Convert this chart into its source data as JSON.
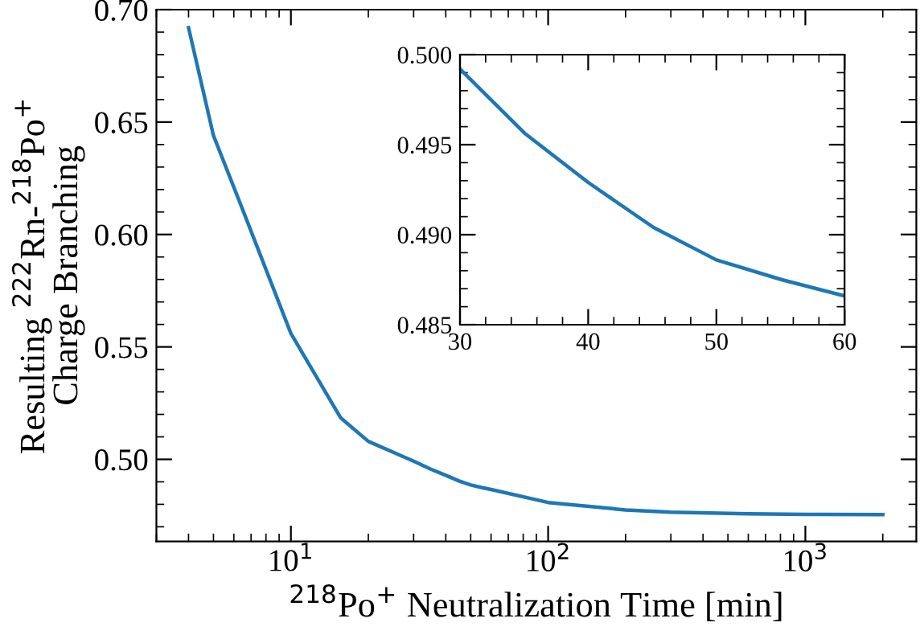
{
  "chart_data": [
    {
      "type": "line",
      "xlabel": "$^{218}$Po$^{+}$ Neutralization Time [min]",
      "ylabel": "Resulting $^{222}$Rn-$^{218}$Po$^{+}$\nCharge Branching",
      "log": "x",
      "x": [
        4,
        5,
        6.6,
        10,
        15.6,
        20,
        30,
        35,
        40,
        45,
        50,
        55,
        60,
        100,
        200,
        300,
        600,
        1000,
        2000
      ],
      "series": [
        {
          "color": "#1f77b4",
          "values": [
            0.692,
            0.644,
            0.609,
            0.556,
            0.5185,
            0.508,
            0.4992,
            0.4956,
            0.4929,
            0.4904,
            0.4886,
            0.4875,
            0.4866,
            0.4808,
            0.4775,
            0.4765,
            0.4758,
            0.4755,
            0.4754
          ]
        }
      ],
      "xlim": [
        3,
        2700
      ],
      "xticks": [
        {
          "value": 10,
          "label": "10$^{1}$"
        },
        {
          "value": 100,
          "label": "10$^{2}$"
        },
        {
          "value": 1000,
          "label": "10$^{3}$"
        }
      ],
      "ylim": [
        0.4635,
        0.7
      ],
      "yticks": [
        {
          "value": 0.5,
          "label": "0.50"
        },
        0.55,
        {
          "value": 0.6,
          "label": "0.60"
        },
        0.65,
        {
          "value": 0.7,
          "label": "0.70"
        }
      ],
      "grid": false,
      "legend": false
    },
    {
      "type": "line",
      "x": [
        30,
        35.1,
        40,
        45.1,
        50,
        55.1,
        60
      ],
      "series": [
        {
          "color": "#1f77b4",
          "values": [
            0.4992,
            0.4956,
            0.4929,
            0.4904,
            0.4886,
            0.4875,
            0.4866
          ]
        }
      ],
      "xlim": [
        30,
        60
      ],
      "xticks": [
        30,
        40,
        50,
        60
      ],
      "ylim": [
        0.485,
        0.5
      ],
      "yticks": [
        0.485,
        {
          "value": 0.49,
          "label": "0.490"
        },
        0.495,
        {
          "value": 0.5,
          "label": "0.500"
        }
      ],
      "grid": false,
      "legend": false
    }
  ]
}
